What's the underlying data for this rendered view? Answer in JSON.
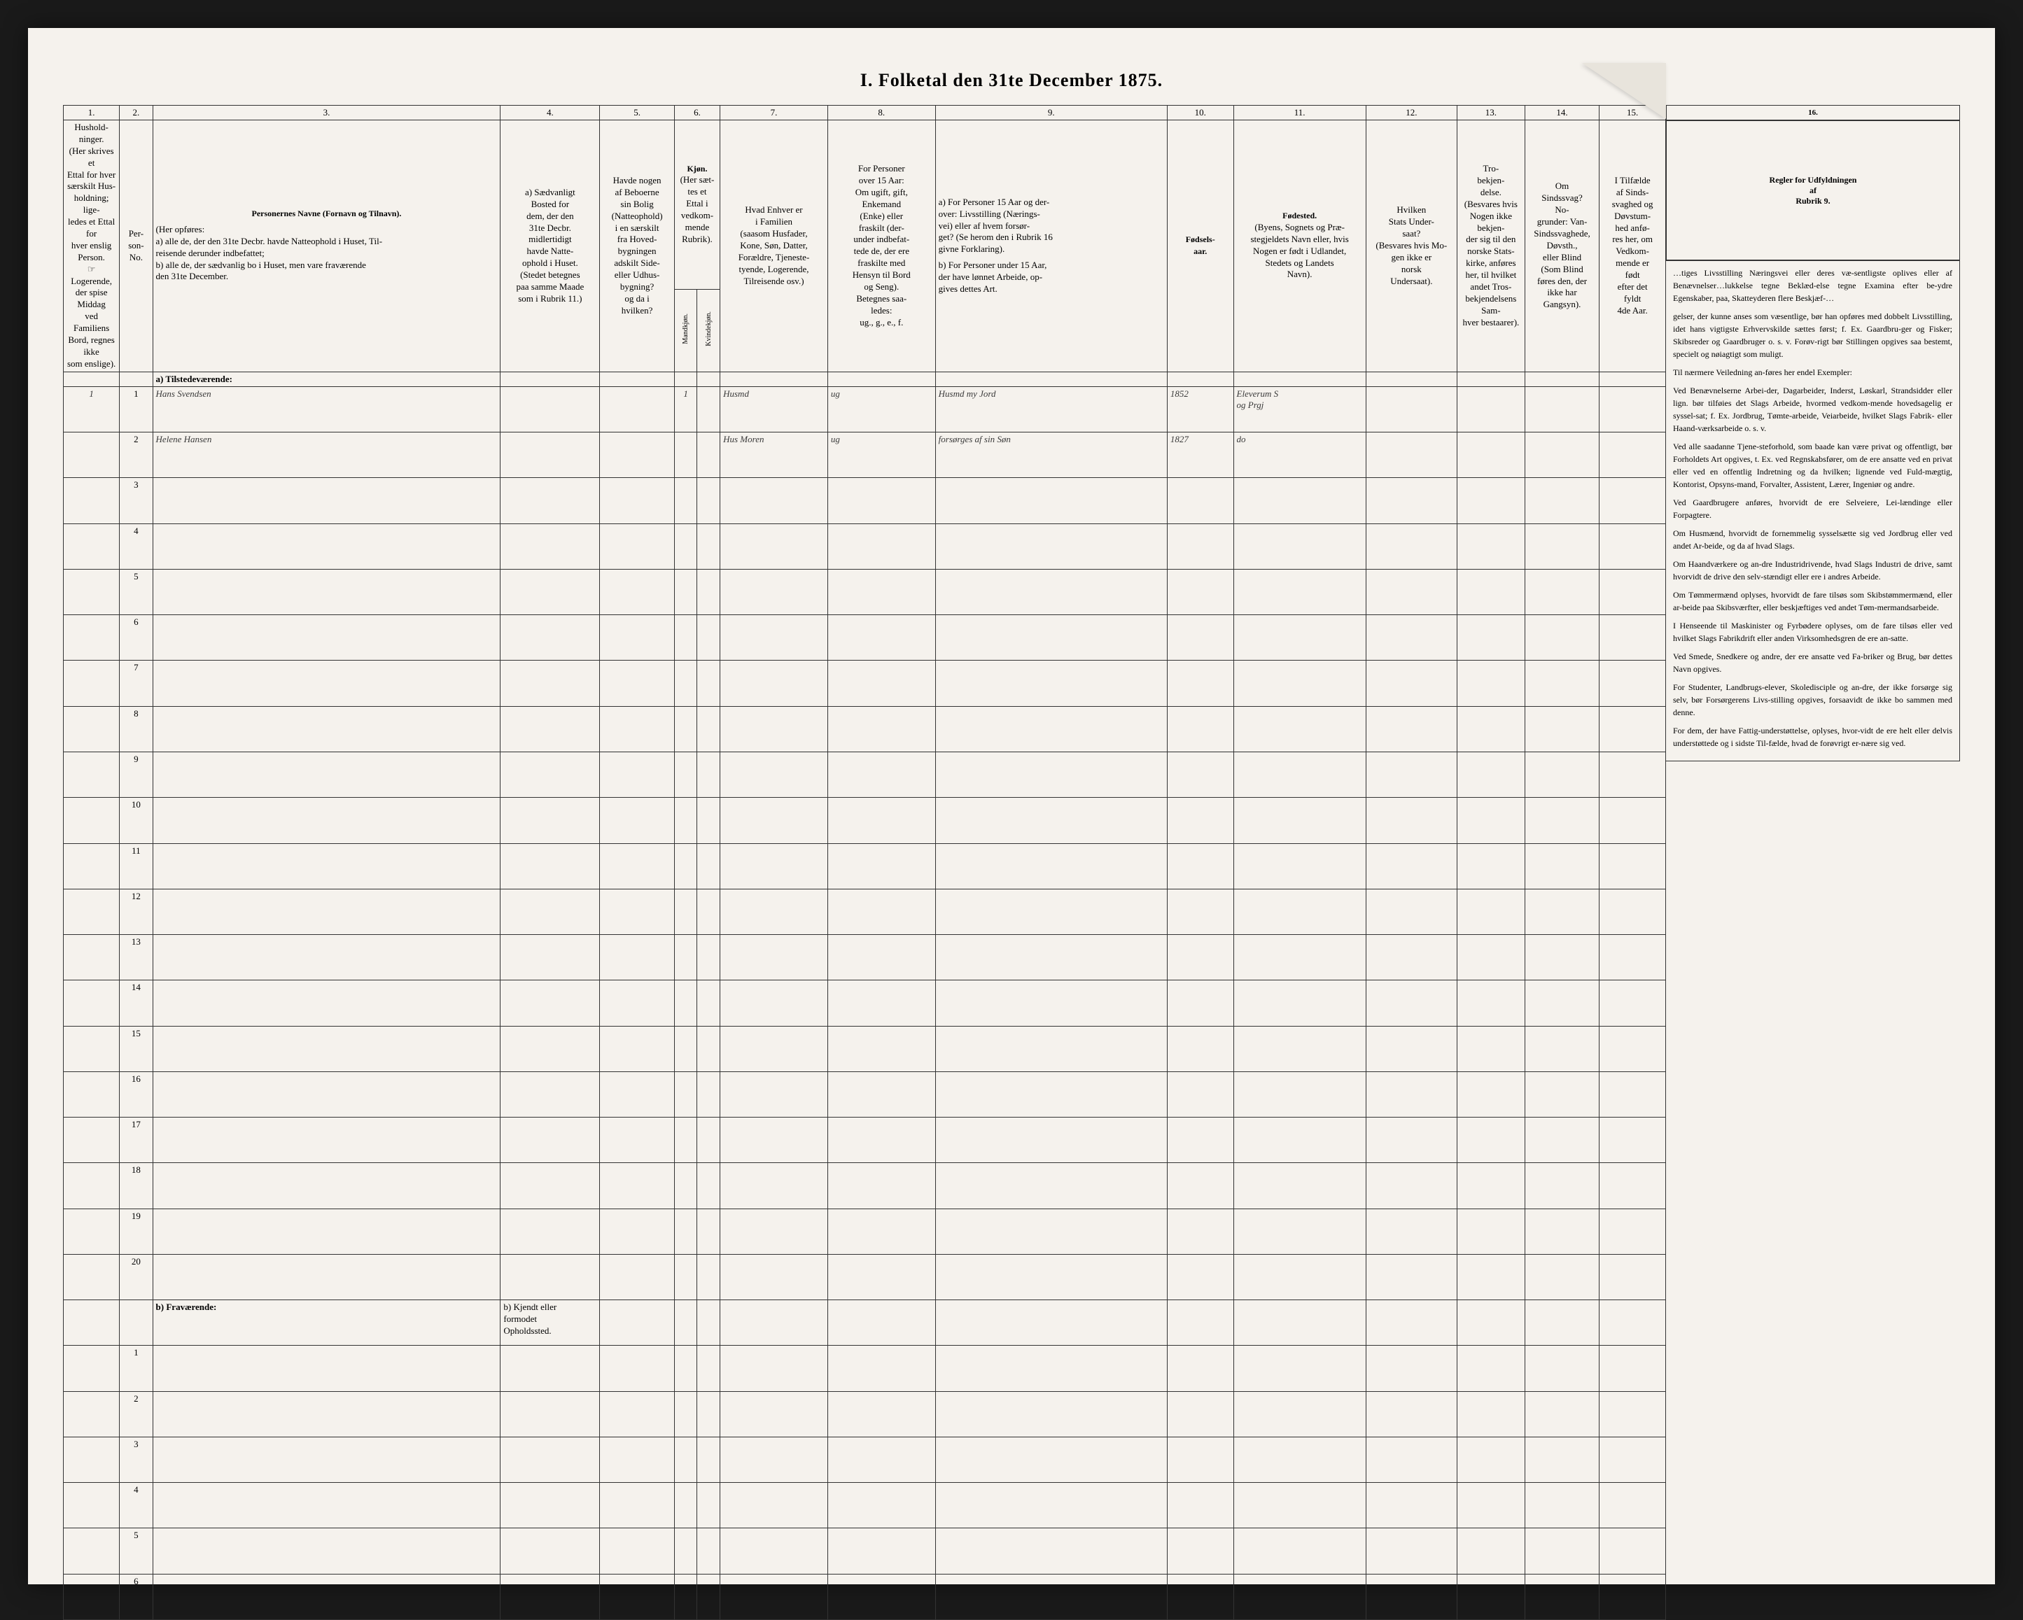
{
  "title": "I. Folketal den 31te December 1875.",
  "colnums": [
    "1.",
    "2.",
    "3.",
    "4.",
    "5.",
    "6.",
    "7.",
    "8.",
    "9.",
    "10.",
    "11.",
    "12.",
    "13.",
    "14.",
    "15.",
    "16."
  ],
  "headers": {
    "c1": "Hushold-\nninger.\n(Her skrives et\nEttal for hver\nsærskilt Hus-\nholdning; lige-\nledes et Ettal for\nhver enslig\nPerson.\n☞ Logerende,\nder spise Middag\nved Familiens\nBord, regnes ikke\nsom enslige).",
    "c2": "Per-\nson-\nNo.",
    "c3_title": "Personernes Navne (Fornavn og Tilnavn).",
    "c3_sub": "(Her opføres:\na) alle de, der den 31te Decbr. havde Natteophold i Huset, Til-\nreisende derunder indbefattet;\nb) alle de, der sædvanlig bo i Huset, men vare fraværende\nden 31te December.",
    "c4": "a) Sædvanligt\nBosted for\ndem, der den\n31te Decbr.\nmidlertidigt\nhavde Natte-\nophold i Huset.\n(Stedet betegnes\npaa samme Maade\nsom i Rubrik 11.)",
    "c5": "Havde nogen\naf Beboerne\nsin Bolig\n(Natteophold)\ni en særskilt\nfra Hoved-\nbygningen\nadskilt Side-\neller Udhus-\nbygning?\nog da i\nhvilken?",
    "c6_title": "Kjøn.",
    "c6_sub": "(Her sæt-\ntes et\nEttal i\nvedkom-\nmende\nRubrik).",
    "c6a": "Mandkjøn.",
    "c6b": "Kvindekjøn.",
    "c7": "Hvad Enhver er\ni Familien\n(saasom Husfader,\nKone, Søn, Datter,\nForældre, Tjeneste-\ntyende, Logerende,\nTilreisende osv.)",
    "c8": "For Personer\nover 15 Aar:\nOm ugift, gift,\nEnkemand\n(Enke) eller\nfraskilt (der-\nunder indbefat-\ntede de, der ere\nfraskilte med\nHensyn til Bord\nog Seng).\nBetegnes saa-\nledes:\nug., g., e., f.",
    "c9a": "a) For Personer 15 Aar og der-\nover: Livsstilling (Nærings-\nvei) eller af hvem forsør-\nget? (Se herom den i Rubrik 16\ngivne Forklaring).",
    "c9b": "b) For Personer under 15 Aar,\nder have lønnet Arbeide, op-\ngives dettes Art.",
    "c10": "Fødsels-\naar.",
    "c11_title": "Fødested.",
    "c11_sub": "(Byens, Sognets og Præ-\nstegjeldets Navn eller, hvis\nNogen er født i Udlandet,\nStedets og Landets\nNavn).",
    "c12": "Hvilken\nStats Under-\nsaat?\n(Besvares hvis Mo-\ngen ikke er\nnorsk\nUndersaat).",
    "c13": "Tro-\nbekjen-\ndelse.\n(Besvares hvis\nNogen ikke bekjen-\nder sig til den\nnorske Stats-\nkirke, anføres\nher, til hvilket\nandet Tros-\nbekjendelsens Sam-\nhver bestaarer).",
    "c14": "Om\nSindssvag?\nNo-\ngrunder: Van-\nSindssvaghede,\nDøvsth.,\neller Blind\n(Som Blind\nføres den, der\nikke har\nGangsyn).",
    "c15": "I Tilfælde\naf Sinds-\nsvaghed og\nDøvstum-\nhed anfø-\nres her, om\nVedkom-\nmende er\nfødt\nefter det\nfyldt\n4de Aar.",
    "c16_title": "Regler for Udfyldningen\naf\nRubrik 9."
  },
  "section_a": "a) Tilstedeværende:",
  "section_b": "b) Fraværende:",
  "section_b_col4": "b) Kjendt eller\nformodet\nOpholdssted.",
  "rows": [
    {
      "n": "1",
      "c1": "1",
      "name": "Hans Svendsen",
      "c6a": "1",
      "c7": "Husmd",
      "c8": "ug",
      "c9": "Husmd my Jord",
      "c10": "1852",
      "c11": "Eleverum S\nog Prgj"
    },
    {
      "n": "2",
      "name": "Helene Hansen",
      "c6b": "",
      "c7": "Hus Moren",
      "c8": "ug",
      "c9": "forsørges af sin Søn",
      "c10": "1827",
      "c11": "do"
    }
  ],
  "blank_rows_a": [
    "3",
    "4",
    "5",
    "6",
    "7",
    "8",
    "9",
    "10",
    "11",
    "12",
    "13",
    "14",
    "15",
    "16",
    "17",
    "18",
    "19",
    "20"
  ],
  "blank_rows_b": [
    "1",
    "2",
    "3",
    "4",
    "5",
    "6"
  ],
  "sidetext": [
    "…tiges Livsstilling Næringsvei eller deres væ-sentligste oplives eller af Benævnelser…lukkelse tegne Beklæd-else tegne Examina efter be-ydre Egenskaber, paa, Skatteyderen flere Beskjæf-…",
    "gelser, der kunne anses som væsentlige, bør han opføres med dobbelt Livsstilling, idet hans vigtigste Erhvervskilde sættes først; f. Ex. Gaardbru-ger og Fisker; Skibsreder og Gaardbruger o. s. v. Forøv-rigt bør Stillingen opgives saa bestemt, specielt og nøiagtigt som muligt.",
    "Til nærmere Veiledning an-føres her endel Exempler:",
    "Ved Benævnelserne Arbei-der, Dagarbeider, Inderst, Løskarl, Strandsidder eller lign. bør tilføies det Slags Arbeide, hvormed vedkom-mende hovedsagelig er syssel-sat; f. Ex. Jordbrug, Tømte-arbeide, Veiarbeide, hvilket Slags Fabrik- eller Haand-værksarbeide o. s. v.",
    "Ved alle saadanne Tjene-steforhold, som baade kan være privat og offentligt, bør Forholdets Art opgives, t. Ex. ved Regnskabsfører, om de ere ansatte ved en privat eller ved en offentlig Indretning og da hvilken; lignende ved Fuld-mægtig, Kontorist, Opsyns-mand, Forvalter, Assistent, Lærer, Ingeniør og andre.",
    "Ved Gaardbrugere anføres, hvorvidt de ere Selveiere, Lei-lændinge eller Forpagtere.",
    "Om Husmænd, hvorvidt de fornemmelig sysselsætte sig ved Jordbrug eller ved andet Ar-beide, og da af hvad Slags.",
    "Om Haandværkere og an-dre Industridrivende, hvad Slags Industri de drive, samt hvorvidt de drive den selv-stændigt eller ere i andres Arbeide.",
    "Om Tømmermænd oplyses, hvorvidt de fare tilsøs som Skibstømmermænd, eller ar-beide paa Skibsværfter, eller beskjæftiges ved andet Tøm-mermandsarbeide.",
    "I Henseende til Maskinister og Fyrbødere oplyses, om de fare tilsøs eller ved hvilket Slags Fabrikdrift eller anden Virksomhedsgren de ere an-satte.",
    "Ved Smede, Snedkere og andre, der ere ansatte ved Fa-briker og Brug, bør dettes Navn opgives.",
    "For Studenter, Landbrugs-elever, Skoledisciple og an-dre, der ikke forsørge sig selv, bør Forsørgerens Livs-stilling opgives, forsaavidt de ikke bo sammen med denne.",
    "For dem, der have Fattig-understøttelse, oplyses, hvor-vidt de ere helt eller delvis understøttede og i sidste Til-fælde, hvad de forøvrigt er-nære sig ved."
  ]
}
